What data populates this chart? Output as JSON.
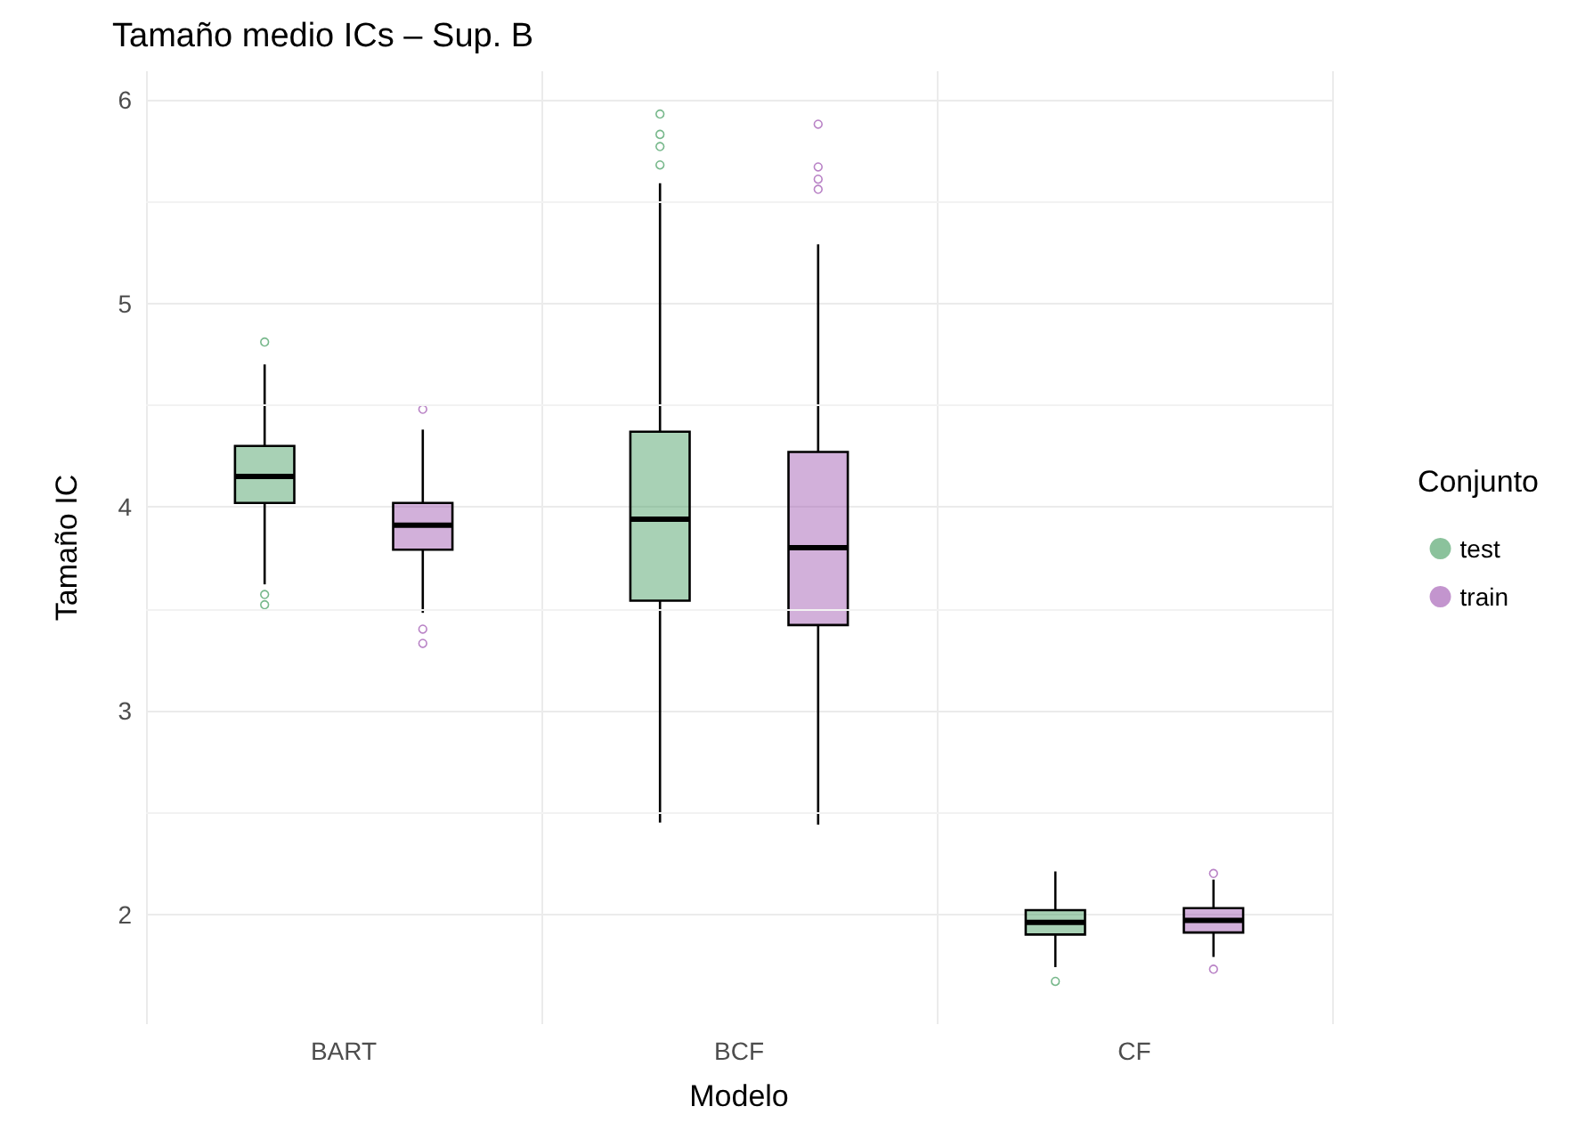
{
  "chart_data": {
    "type": "box",
    "title": "Tamaño medio ICs – Sup. B",
    "xlabel": "Modelo",
    "ylabel": "Tamaño IC",
    "legend_title": "Conjunto",
    "categories": [
      "BART",
      "BCF",
      "CF"
    ],
    "ylim": [
      1.46,
      6.14
    ],
    "yticks": [
      {
        "value": 2.5,
        "label": null
      },
      {
        "value": 3.5,
        "label": null
      },
      {
        "value": 4.5,
        "label": null
      },
      {
        "value": 5.5,
        "label": null
      },
      2,
      3,
      4,
      5,
      6
    ],
    "grid": true,
    "legend": "right",
    "marker": "circle",
    "series": [
      {
        "name": "test",
        "color": "#3d9a5a",
        "boxes": [
          {
            "low": 3.62,
            "q1": 4.02,
            "median": 4.15,
            "q3": 4.3,
            "high": 4.7,
            "outliers": [
              4.81,
              3.57,
              3.52
            ]
          },
          {
            "low": 2.45,
            "q1": 3.54,
            "median": 3.94,
            "q3": 4.37,
            "high": 5.59,
            "outliers": [
              5.93,
              5.83,
              5.77,
              5.68
            ]
          },
          {
            "low": 1.74,
            "q1": 1.9,
            "median": 1.96,
            "q3": 2.02,
            "high": 2.21,
            "outliers": [
              1.67
            ]
          }
        ]
      },
      {
        "name": "train",
        "color": "#9b4fae",
        "boxes": [
          {
            "low": 3.48,
            "q1": 3.79,
            "median": 3.91,
            "q3": 4.02,
            "high": 4.38,
            "outliers": [
              4.48,
              3.4,
              3.33
            ]
          },
          {
            "low": 2.44,
            "q1": 3.42,
            "median": 3.8,
            "q3": 4.27,
            "high": 5.29,
            "outliers": [
              5.88,
              5.67,
              5.61,
              5.56
            ]
          },
          {
            "low": 1.79,
            "q1": 1.91,
            "median": 1.97,
            "q3": 2.03,
            "high": 2.17,
            "outliers": [
              2.2,
              1.73
            ]
          }
        ]
      }
    ]
  }
}
